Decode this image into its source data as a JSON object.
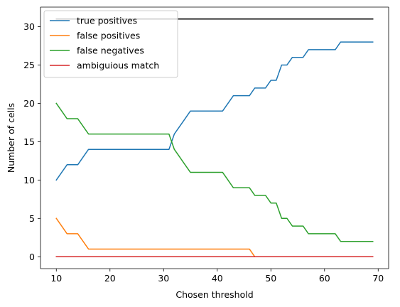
{
  "chart_data": {
    "type": "line",
    "title": "",
    "xlabel": "Chosen threshold",
    "ylabel": "Number of cells",
    "xlim": [
      7.05,
      71.95
    ],
    "ylim": [
      -1.55,
      32.55
    ],
    "xticks": [
      10,
      20,
      30,
      40,
      50,
      60,
      70
    ],
    "yticks": [
      0,
      5,
      10,
      15,
      20,
      25,
      30
    ],
    "grid": false,
    "legend": "top-left",
    "x": [
      10,
      11,
      12,
      13,
      14,
      15,
      16,
      17,
      18,
      19,
      20,
      21,
      22,
      23,
      24,
      25,
      26,
      27,
      28,
      29,
      30,
      31,
      32,
      33,
      34,
      35,
      36,
      37,
      38,
      39,
      40,
      41,
      42,
      43,
      44,
      45,
      46,
      47,
      48,
      49,
      50,
      51,
      52,
      53,
      54,
      55,
      56,
      57,
      58,
      59,
      60,
      61,
      62,
      63,
      64,
      65,
      66,
      67,
      68,
      69
    ],
    "series": [
      {
        "name": "true positives",
        "color": "#1f77b4",
        "values": [
          10,
          11,
          12,
          12,
          12,
          13,
          14,
          14,
          14,
          14,
          14,
          14,
          14,
          14,
          14,
          14,
          14,
          14,
          14,
          14,
          14,
          14,
          16,
          17,
          18,
          19,
          19,
          19,
          19,
          19,
          19,
          19,
          20,
          21,
          21,
          21,
          21,
          22,
          22,
          22,
          23,
          23,
          25,
          25,
          26,
          26,
          26,
          27,
          27,
          27,
          27,
          27,
          27,
          28,
          28,
          28,
          28,
          28,
          28,
          28
        ]
      },
      {
        "name": "false positives",
        "color": "#ff7f0e",
        "values": [
          5,
          4,
          3,
          3,
          3,
          2,
          1,
          1,
          1,
          1,
          1,
          1,
          1,
          1,
          1,
          1,
          1,
          1,
          1,
          1,
          1,
          1,
          1,
          1,
          1,
          1,
          1,
          1,
          1,
          1,
          1,
          1,
          1,
          1,
          1,
          1,
          1,
          0,
          0,
          0,
          0,
          0,
          0,
          0,
          0,
          0,
          0,
          0,
          0,
          0,
          0,
          0,
          0,
          0,
          0,
          0,
          0,
          0,
          0,
          0
        ]
      },
      {
        "name": "false negatives",
        "color": "#2ca02c",
        "values": [
          20,
          19,
          18,
          18,
          18,
          17,
          16,
          16,
          16,
          16,
          16,
          16,
          16,
          16,
          16,
          16,
          16,
          16,
          16,
          16,
          16,
          16,
          14,
          13,
          12,
          11,
          11,
          11,
          11,
          11,
          11,
          11,
          10,
          9,
          9,
          9,
          9,
          8,
          8,
          8,
          7,
          7,
          5,
          5,
          4,
          4,
          4,
          3,
          3,
          3,
          3,
          3,
          3,
          2,
          2,
          2,
          2,
          2,
          2,
          2
        ]
      },
      {
        "name": "ambiguious match",
        "color": "#d62728",
        "values": [
          0,
          0,
          0,
          0,
          0,
          0,
          0,
          0,
          0,
          0,
          0,
          0,
          0,
          0,
          0,
          0,
          0,
          0,
          0,
          0,
          0,
          0,
          0,
          0,
          0,
          0,
          0,
          0,
          0,
          0,
          0,
          0,
          0,
          0,
          0,
          0,
          0,
          0,
          0,
          0,
          0,
          0,
          0,
          0,
          0,
          0,
          0,
          0,
          0,
          0,
          0,
          0,
          0,
          0,
          0,
          0,
          0,
          0,
          0,
          0
        ]
      },
      {
        "color": "#000000",
        "values": [
          31,
          31,
          31,
          31,
          31,
          31,
          31,
          31,
          31,
          31,
          31,
          31,
          31,
          31,
          31,
          31,
          31,
          31,
          31,
          31,
          31,
          31,
          31,
          31,
          31,
          31,
          31,
          31,
          31,
          31,
          31,
          31,
          31,
          31,
          31,
          31,
          31,
          31,
          31,
          31,
          31,
          31,
          31,
          31,
          31,
          31,
          31,
          31,
          31,
          31,
          31,
          31,
          31,
          31,
          31,
          31,
          31,
          31,
          31,
          31
        ]
      }
    ]
  }
}
